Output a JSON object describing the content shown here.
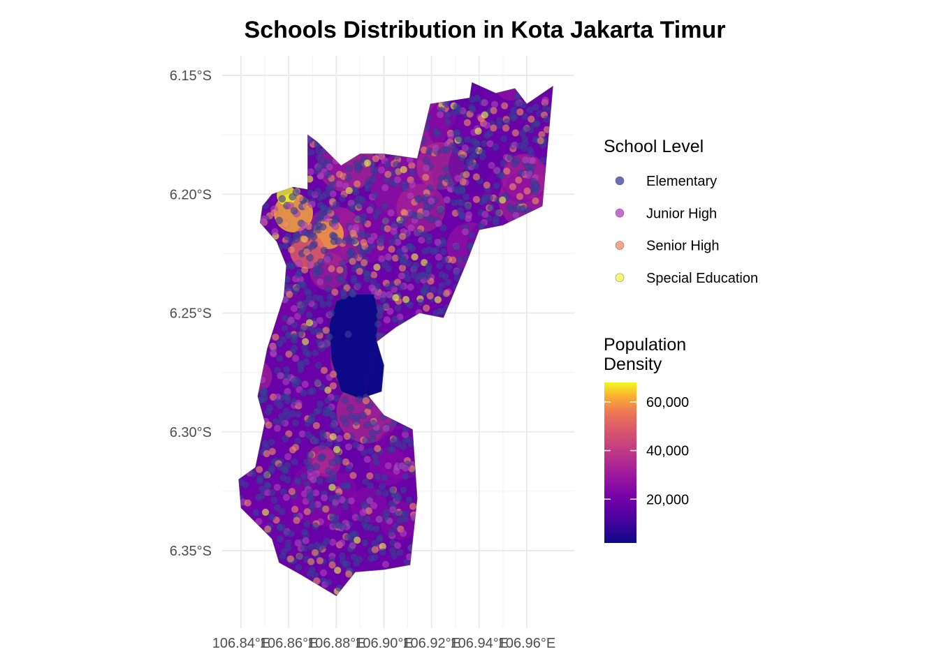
{
  "chart_data": {
    "type": "scatter",
    "subtype": "choropleth-map-with-points",
    "title": "Schools Distribution in Kota Jakarta Timur",
    "xlabel": "",
    "ylabel": "",
    "x_range": [
      106.835,
      106.975
    ],
    "y_range": [
      -6.378,
      -6.143
    ],
    "x_ticks": [
      106.84,
      106.86,
      106.88,
      106.9,
      106.92,
      106.94,
      106.96
    ],
    "x_tick_labels": [
      "106.84°E",
      "106.86°E",
      "106.88°E",
      "106.90°E",
      "106.92°E",
      "106.94°E",
      "106.96°E"
    ],
    "y_ticks": [
      -6.15,
      -6.2,
      -6.25,
      -6.3,
      -6.35
    ],
    "y_tick_labels": [
      "6.15°S",
      "6.20°S",
      "6.25°S",
      "6.30°S",
      "6.35°S"
    ],
    "grid": true,
    "legend_position": "right",
    "legend_point": {
      "title": "School Level",
      "entries": [
        {
          "label": "Elementary",
          "color": "#3b3b9c"
        },
        {
          "label": "Junior High",
          "color": "#b040c0"
        },
        {
          "label": "Senior High",
          "color": "#f08a6a"
        },
        {
          "label": "Special Education",
          "color": "#f2f24a"
        }
      ]
    },
    "legend_fill": {
      "title_lines": [
        "Population",
        "Density"
      ],
      "range": [
        2000,
        68000
      ],
      "breaks": [
        20000,
        40000,
        60000
      ],
      "break_labels": [
        "20,000",
        "40,000",
        "60,000"
      ],
      "palette": "plasma"
    },
    "region_outline": [
      [
        106.9195,
        -6.162
      ],
      [
        106.936,
        -6.1595
      ],
      [
        106.937,
        -6.153
      ],
      [
        106.947,
        -6.1575
      ],
      [
        106.955,
        -6.1555
      ],
      [
        106.96,
        -6.162
      ],
      [
        106.971,
        -6.1545
      ],
      [
        106.9665,
        -6.205
      ],
      [
        106.95,
        -6.213
      ],
      [
        106.94,
        -6.215
      ],
      [
        106.935,
        -6.228
      ],
      [
        106.925,
        -6.252
      ],
      [
        106.915,
        -6.25
      ],
      [
        106.905,
        -6.256
      ],
      [
        106.897,
        -6.262
      ],
      [
        106.892,
        -6.283
      ],
      [
        106.9,
        -6.293
      ],
      [
        106.912,
        -6.299
      ],
      [
        106.914,
        -6.328
      ],
      [
        106.911,
        -6.356
      ],
      [
        106.9,
        -6.358
      ],
      [
        106.888,
        -6.359
      ],
      [
        106.88,
        -6.369
      ],
      [
        106.865,
        -6.36
      ],
      [
        106.856,
        -6.355
      ],
      [
        106.853,
        -6.345
      ],
      [
        106.84,
        -6.332
      ],
      [
        106.839,
        -6.32
      ],
      [
        106.846,
        -6.315
      ],
      [
        106.85,
        -6.296
      ],
      [
        106.847,
        -6.285
      ],
      [
        106.851,
        -6.265
      ],
      [
        106.858,
        -6.243
      ],
      [
        106.859,
        -6.23
      ],
      [
        106.855,
        -6.22
      ],
      [
        106.848,
        -6.212
      ],
      [
        106.849,
        -6.205
      ],
      [
        106.853,
        -6.2
      ],
      [
        106.862,
        -6.197
      ],
      [
        106.868,
        -6.198
      ],
      [
        106.868,
        -6.175
      ],
      [
        106.872,
        -6.178
      ],
      [
        106.882,
        -6.188
      ],
      [
        106.89,
        -6.183
      ],
      [
        106.9,
        -6.183
      ],
      [
        106.914,
        -6.185
      ],
      [
        106.9195,
        -6.162
      ]
    ],
    "region_hole": [
      [
        106.887,
        -6.242
      ],
      [
        106.896,
        -6.242
      ],
      [
        106.8975,
        -6.25
      ],
      [
        106.897,
        -6.262
      ],
      [
        106.9,
        -6.272
      ],
      [
        106.899,
        -6.283
      ],
      [
        106.89,
        -6.286
      ],
      [
        106.882,
        -6.283
      ],
      [
        106.878,
        -6.27
      ],
      [
        106.877,
        -6.255
      ],
      [
        106.88,
        -6.245
      ],
      [
        106.887,
        -6.242
      ]
    ],
    "points_note": "individual school locations (~1500) are not labeled; points are rendered as a distribution over the region by level"
  }
}
